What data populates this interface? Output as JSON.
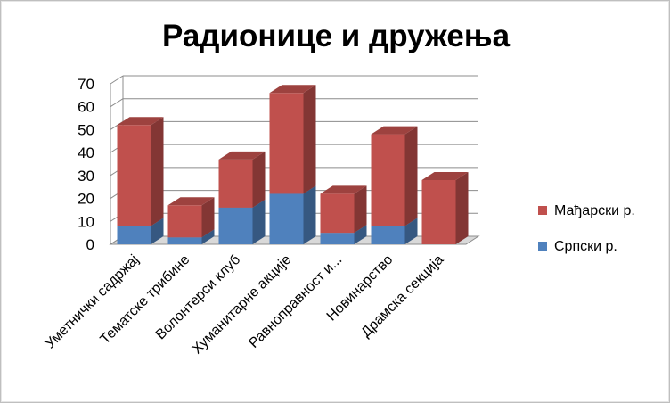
{
  "chart_data": {
    "type": "bar",
    "stacked": true,
    "three_d": true,
    "title": "Радионице и дружења",
    "categories": [
      "Уметнички садржај",
      "Тематске трибине",
      "Волонтерси клуб",
      "Хуманитарне акције",
      "Равноправност и...",
      "Новинарство",
      "Драмска секција"
    ],
    "series": [
      {
        "name": "Српски р.",
        "color": "#4f81bd",
        "values": [
          8,
          3,
          16,
          22,
          5,
          8,
          0
        ]
      },
      {
        "name": "Мађарски р.",
        "color": "#c0504d",
        "values": [
          44,
          14,
          21,
          44,
          17,
          40,
          28
        ]
      }
    ],
    "yticks": [
      0,
      10,
      20,
      30,
      40,
      50,
      60,
      70
    ],
    "ylim": [
      0,
      70
    ],
    "grid": true,
    "legend_position": "right"
  }
}
